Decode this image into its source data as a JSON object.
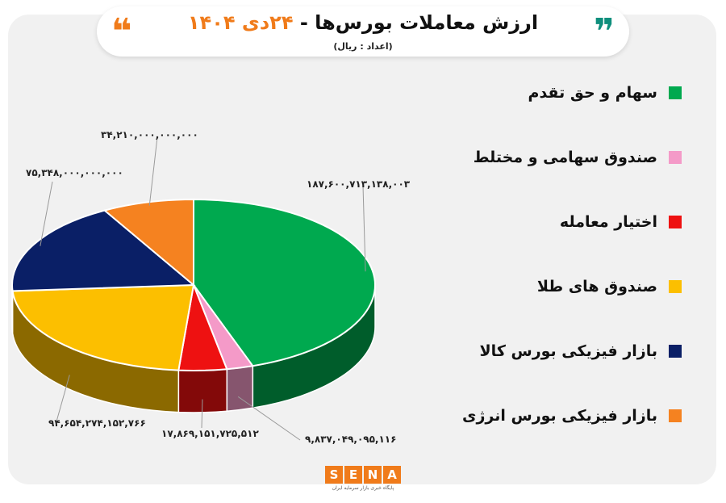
{
  "header": {
    "title": "ارزش معاملات بورس‌ها  -",
    "date": "۲۴دی ۱۴۰۴",
    "unit": "(اعداد : ریال)",
    "quote_open": "❞",
    "quote_close": "❝"
  },
  "chart_data": {
    "type": "pie",
    "title": "ارزش معاملات بورس‌ها - ۲۴دی ۱۴۰۴",
    "unit": "(اعداد : ریال)",
    "slices": [
      {
        "label": "سهام و حق تقدم",
        "value": 187600713138003,
        "value_text": "۱۸۷,۶۰۰,۷۱۳,۱۳۸,۰۰۳",
        "color": "#00a94f"
      },
      {
        "label": "صندوق سهامی و مختلط",
        "value": 9837049095116,
        "value_text": "۹,۸۳۷,۰۴۹,۰۹۵,۱۱۶",
        "color": "#f49ac8"
      },
      {
        "label": "اختیار معامله",
        "value": 17869151725512,
        "value_text": "۱۷,۸۶۹,۱۵۱,۷۲۵,۵۱۲",
        "color": "#ee1111"
      },
      {
        "label": "صندوق های طلا",
        "value": 94654274152766,
        "value_text": "۹۴,۶۵۴,۲۷۴,۱۵۲,۷۶۶",
        "color": "#fcbf00"
      },
      {
        "label": "بازار فیزیکی بورس کالا",
        "value": 75348000000000,
        "value_text": "۷۵,۳۴۸,۰۰۰,۰۰۰,۰۰۰",
        "color": "#0a1f66"
      },
      {
        "label": "بازار فیزیکی بورس انرژی",
        "value": 34210000000000,
        "value_text": "۳۴,۲۱۰,۰۰۰,۰۰۰,۰۰۰",
        "color": "#f58220"
      }
    ],
    "legend_position": "right"
  },
  "logo": {
    "letters": [
      "S",
      "E",
      "N",
      "A"
    ],
    "subtitle": "پایگاه خبری بازار سرمایه ایران"
  }
}
